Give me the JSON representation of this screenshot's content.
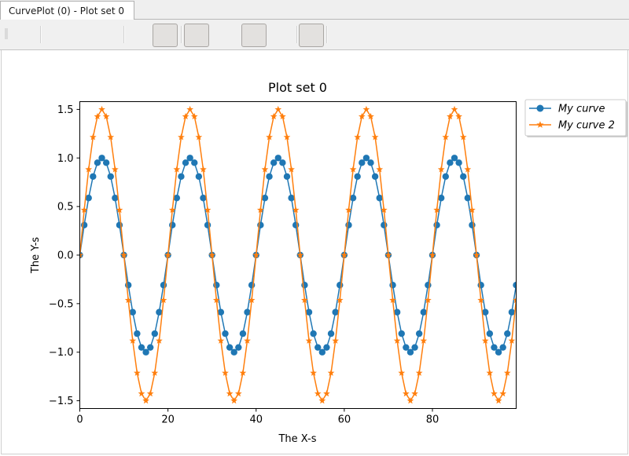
{
  "window": {
    "tab_label": "CurvePlot (0) - Plot set 0"
  },
  "toolbar": {
    "buttons": [
      "toolbar-button-1",
      "toolbar-button-2",
      "toolbar-button-3",
      "toolbar-button-4"
    ]
  },
  "chart_data": {
    "type": "line",
    "title": "Plot set 0",
    "xlabel": "The X-s",
    "ylabel": "The Y-s",
    "xlim": [
      0,
      99
    ],
    "ylim": [
      -1.58,
      1.58
    ],
    "xticks": [
      0,
      20,
      40,
      60,
      80
    ],
    "yticks": [
      -1.5,
      -1.0,
      -0.5,
      0.0,
      0.5,
      1.0,
      1.5
    ],
    "xtick_labels": [
      "0",
      "20",
      "40",
      "60",
      "80"
    ],
    "ytick_labels": [
      "−1.5",
      "−1.0",
      "−0.5",
      "0.0",
      "0.5",
      "1.0",
      "1.5"
    ],
    "grid": false,
    "legend_position": "outside-top-right",
    "series": [
      {
        "name": "My curve",
        "color": "#1f77b4",
        "marker": "circle",
        "x": [
          0,
          1,
          2,
          3,
          4,
          5,
          6,
          7,
          8,
          9,
          10,
          11,
          12,
          13,
          14,
          15,
          16,
          17,
          18,
          19,
          20,
          21,
          22,
          23,
          24,
          25,
          26,
          27,
          28,
          29,
          30,
          31,
          32,
          33,
          34,
          35,
          36,
          37,
          38,
          39,
          40,
          41,
          42,
          43,
          44,
          45,
          46,
          47,
          48,
          49,
          50,
          51,
          52,
          53,
          54,
          55,
          56,
          57,
          58,
          59,
          60,
          61,
          62,
          63,
          64,
          65,
          66,
          67,
          68,
          69,
          70,
          71,
          72,
          73,
          74,
          75,
          76,
          77,
          78,
          79,
          80,
          81,
          82,
          83,
          84,
          85,
          86,
          87,
          88,
          89,
          90,
          91,
          92,
          93,
          94,
          95,
          96,
          97,
          98,
          99
        ],
        "y": [
          0.0,
          0.309,
          0.588,
          0.809,
          0.951,
          1.0,
          0.951,
          0.809,
          0.588,
          0.309,
          0.0,
          -0.309,
          -0.588,
          -0.809,
          -0.951,
          -1.0,
          -0.951,
          -0.809,
          -0.588,
          -0.309,
          0.0,
          0.309,
          0.588,
          0.809,
          0.951,
          1.0,
          0.951,
          0.809,
          0.588,
          0.309,
          0.0,
          -0.309,
          -0.588,
          -0.809,
          -0.951,
          -1.0,
          -0.951,
          -0.809,
          -0.588,
          -0.309,
          0.0,
          0.309,
          0.588,
          0.809,
          0.951,
          1.0,
          0.951,
          0.809,
          0.588,
          0.309,
          0.0,
          -0.309,
          -0.588,
          -0.809,
          -0.951,
          -1.0,
          -0.951,
          -0.809,
          -0.588,
          -0.309,
          0.0,
          0.309,
          0.588,
          0.809,
          0.951,
          1.0,
          0.951,
          0.809,
          0.588,
          0.309,
          0.0,
          -0.309,
          -0.588,
          -0.809,
          -0.951,
          -1.0,
          -0.951,
          -0.809,
          -0.588,
          -0.309,
          0.0,
          0.309,
          0.588,
          0.809,
          0.951,
          1.0,
          0.951,
          0.809,
          0.588,
          0.309,
          0.0,
          -0.309,
          -0.588,
          -0.809,
          -0.951,
          -1.0,
          -0.951,
          -0.809,
          -0.588,
          -0.309
        ]
      },
      {
        "name": "My curve 2",
        "color": "#ff7f0e",
        "marker": "star",
        "x": [
          0,
          1,
          2,
          3,
          4,
          5,
          6,
          7,
          8,
          9,
          10,
          11,
          12,
          13,
          14,
          15,
          16,
          17,
          18,
          19,
          20,
          21,
          22,
          23,
          24,
          25,
          26,
          27,
          28,
          29,
          30,
          31,
          32,
          33,
          34,
          35,
          36,
          37,
          38,
          39,
          40,
          41,
          42,
          43,
          44,
          45,
          46,
          47,
          48,
          49,
          50,
          51,
          52,
          53,
          54,
          55,
          56,
          57,
          58,
          59,
          60,
          61,
          62,
          63,
          64,
          65,
          66,
          67,
          68,
          69,
          70,
          71,
          72,
          73,
          74,
          75,
          76,
          77,
          78,
          79,
          80,
          81,
          82,
          83,
          84,
          85,
          86,
          87,
          88,
          89,
          90,
          91,
          92,
          93,
          94,
          95,
          96,
          97,
          98,
          99
        ],
        "y": [
          0.0,
          0.464,
          0.882,
          1.214,
          1.427,
          1.5,
          1.427,
          1.214,
          0.882,
          0.464,
          0.0,
          -0.464,
          -0.882,
          -1.214,
          -1.427,
          -1.5,
          -1.427,
          -1.214,
          -0.882,
          -0.464,
          0.0,
          0.464,
          0.882,
          1.214,
          1.427,
          1.5,
          1.427,
          1.214,
          0.882,
          0.464,
          0.0,
          -0.464,
          -0.882,
          -1.214,
          -1.427,
          -1.5,
          -1.427,
          -1.214,
          -0.882,
          -0.464,
          0.0,
          0.464,
          0.882,
          1.214,
          1.427,
          1.5,
          1.427,
          1.214,
          0.882,
          0.464,
          0.0,
          -0.464,
          -0.882,
          -1.214,
          -1.427,
          -1.5,
          -1.427,
          -1.214,
          -0.882,
          -0.464,
          0.0,
          0.464,
          0.882,
          1.214,
          1.427,
          1.5,
          1.427,
          1.214,
          0.882,
          0.464,
          0.0,
          -0.464,
          -0.882,
          -1.214,
          -1.427,
          -1.5,
          -1.427,
          -1.214,
          -0.882,
          -0.464,
          0.0,
          0.464,
          0.882,
          1.214,
          1.427,
          1.5,
          1.427,
          1.214,
          0.882,
          0.464,
          0.0,
          -0.464,
          -0.882,
          -1.214,
          -1.427,
          -1.5,
          -1.427,
          -1.214,
          -0.882,
          -0.464
        ]
      }
    ]
  }
}
